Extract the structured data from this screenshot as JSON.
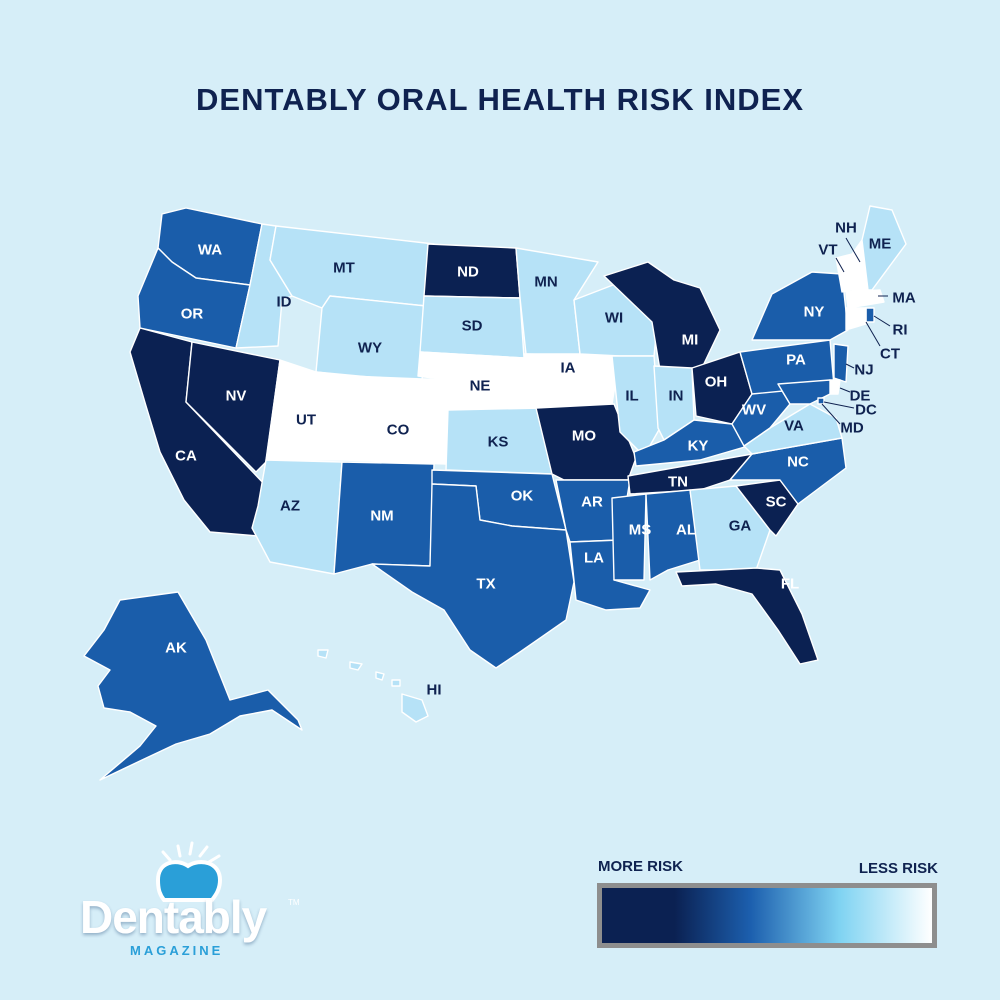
{
  "title": "DENTABLY ORAL HEALTH RISK INDEX",
  "colors": {
    "background": "#d6eef8",
    "highest_risk": "#0b2152",
    "high_risk": "#1a5daa",
    "low_risk": "#b6e2f7",
    "lowest_risk": "#ffffff",
    "label_dark": "#0f2250",
    "label_light": "#ffffff"
  },
  "states": [
    {
      "abbr": "WA",
      "level": "high_risk"
    },
    {
      "abbr": "OR",
      "level": "high_risk"
    },
    {
      "abbr": "CA",
      "level": "highest_risk"
    },
    {
      "abbr": "NV",
      "level": "highest_risk"
    },
    {
      "abbr": "ID",
      "level": "low_risk"
    },
    {
      "abbr": "MT",
      "level": "low_risk"
    },
    {
      "abbr": "WY",
      "level": "low_risk"
    },
    {
      "abbr": "UT",
      "level": "lowest_risk"
    },
    {
      "abbr": "CO",
      "level": "lowest_risk"
    },
    {
      "abbr": "AZ",
      "level": "low_risk"
    },
    {
      "abbr": "NM",
      "level": "high_risk"
    },
    {
      "abbr": "ND",
      "level": "highest_risk"
    },
    {
      "abbr": "SD",
      "level": "low_risk"
    },
    {
      "abbr": "NE",
      "level": "lowest_risk"
    },
    {
      "abbr": "KS",
      "level": "low_risk"
    },
    {
      "abbr": "OK",
      "level": "high_risk"
    },
    {
      "abbr": "TX",
      "level": "high_risk"
    },
    {
      "abbr": "MN",
      "level": "low_risk"
    },
    {
      "abbr": "IA",
      "level": "lowest_risk"
    },
    {
      "abbr": "MO",
      "level": "highest_risk"
    },
    {
      "abbr": "AR",
      "level": "high_risk"
    },
    {
      "abbr": "LA",
      "level": "high_risk"
    },
    {
      "abbr": "WI",
      "level": "low_risk"
    },
    {
      "abbr": "IL",
      "level": "low_risk"
    },
    {
      "abbr": "MI",
      "level": "highest_risk"
    },
    {
      "abbr": "IN",
      "level": "low_risk"
    },
    {
      "abbr": "OH",
      "level": "highest_risk"
    },
    {
      "abbr": "KY",
      "level": "high_risk"
    },
    {
      "abbr": "TN",
      "level": "highest_risk"
    },
    {
      "abbr": "MS",
      "level": "high_risk"
    },
    {
      "abbr": "AL",
      "level": "high_risk"
    },
    {
      "abbr": "GA",
      "level": "low_risk"
    },
    {
      "abbr": "FL",
      "level": "highest_risk"
    },
    {
      "abbr": "SC",
      "level": "highest_risk"
    },
    {
      "abbr": "NC",
      "level": "high_risk"
    },
    {
      "abbr": "VA",
      "level": "low_risk"
    },
    {
      "abbr": "WV",
      "level": "high_risk"
    },
    {
      "abbr": "PA",
      "level": "high_risk"
    },
    {
      "abbr": "NY",
      "level": "high_risk"
    },
    {
      "abbr": "VT",
      "level": "lowest_risk"
    },
    {
      "abbr": "NH",
      "level": "lowest_risk"
    },
    {
      "abbr": "ME",
      "level": "low_risk"
    },
    {
      "abbr": "MA",
      "level": "lowest_risk"
    },
    {
      "abbr": "RI",
      "level": "high_risk"
    },
    {
      "abbr": "CT",
      "level": "lowest_risk"
    },
    {
      "abbr": "NJ",
      "level": "high_risk"
    },
    {
      "abbr": "DE",
      "level": "lowest_risk"
    },
    {
      "abbr": "MD",
      "level": "high_risk"
    },
    {
      "abbr": "DC",
      "level": "high_risk"
    },
    {
      "abbr": "AK",
      "level": "high_risk"
    },
    {
      "abbr": "HI",
      "level": "low_risk"
    }
  ],
  "legend": {
    "left_label": "MORE RISK",
    "right_label": "LESS RISK"
  },
  "logo": {
    "word": "Dentably",
    "tm": "TM",
    "sub": "MAGAZINE"
  }
}
